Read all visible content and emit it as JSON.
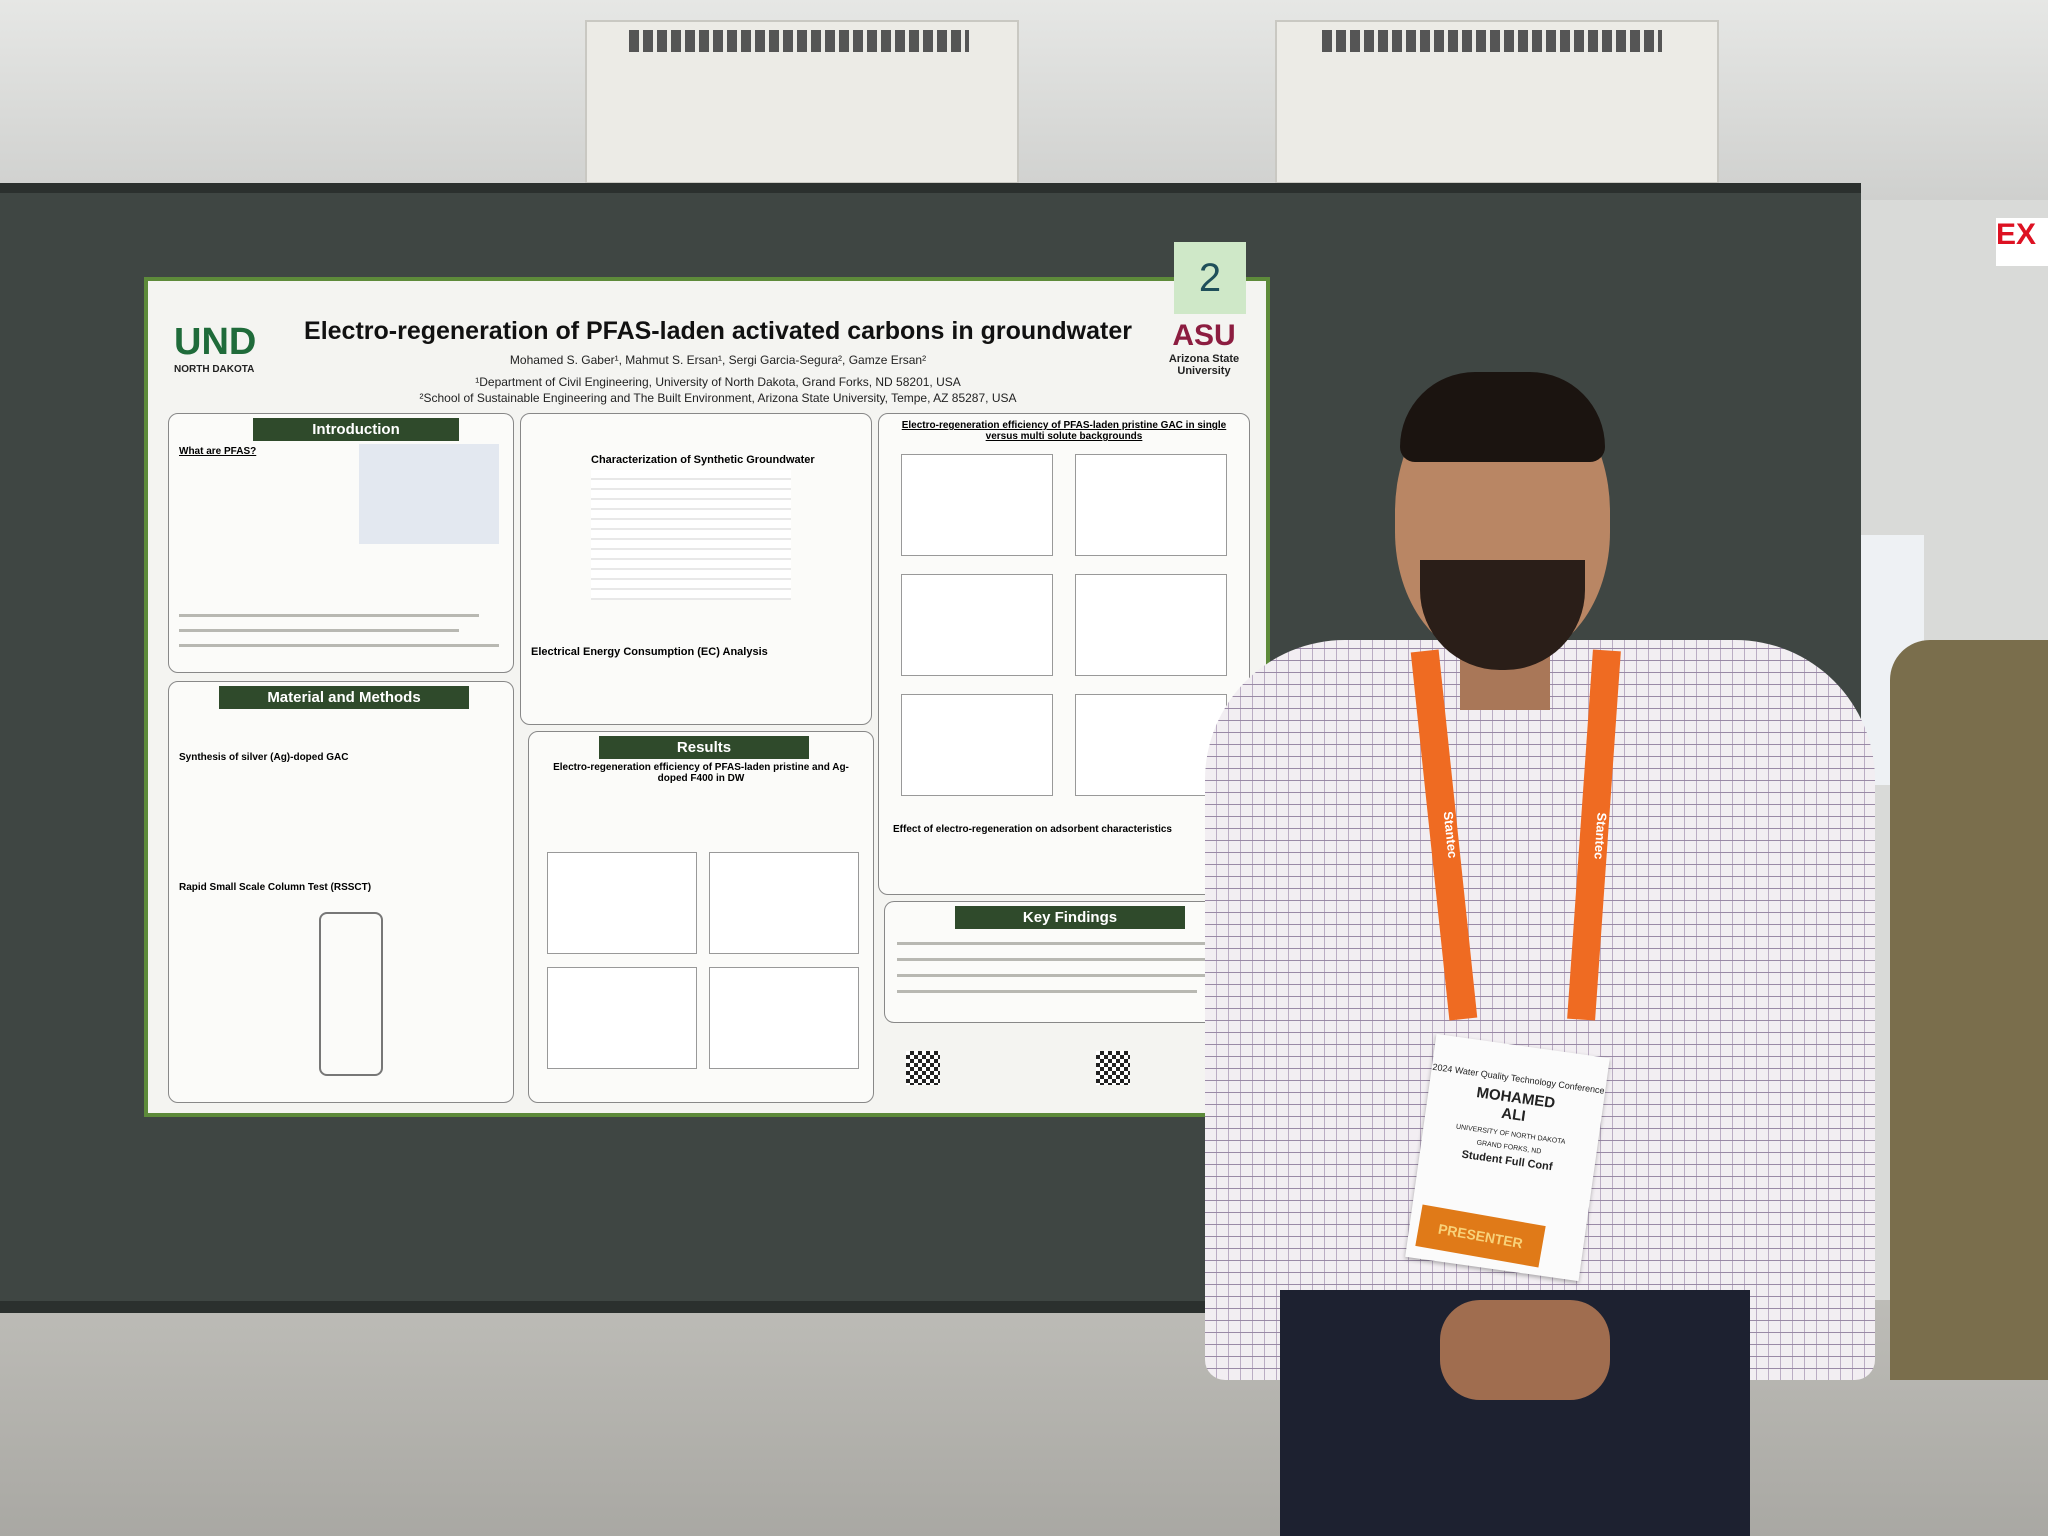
{
  "poster": {
    "title": "Electro-regeneration of PFAS-laden activated carbons in groundwater",
    "authors": "Mohamed S. Gaber¹, Mahmut S. Ersan¹, Sergi Garcia-Segura², Gamze Ersan²",
    "affiliation_1": "¹Department of Civil Engineering, University of North Dakota, Grand Forks, ND 58201, USA",
    "affiliation_2": "²School of Sustainable Engineering and The Built Environment, Arizona State University, Tempe, AZ 85287, USA",
    "logo_left": "UND",
    "logo_left_sub": "NORTH DAKOTA",
    "logo_right": "ASU",
    "logo_right_sub": "Arizona State University",
    "sections": {
      "introduction": "Introduction",
      "methods": "Material and Methods",
      "results": "Results",
      "key_findings": "Key Findings",
      "table_title": "Characterization of Synthetic Groundwater",
      "ec_title": "Electrical Energy Consumption (EC) Analysis",
      "results_sub": "Electro-regeneration efficiency of PFAS-laden pristine and Ag-doped F400 in DW",
      "right_sub": "Electro-regeneration efficiency of PFAS-laden pristine GAC in single versus multi solute backgrounds",
      "effect_title": "Effect of electro-regeneration on adsorbent characteristics",
      "what_pfas": "What are PFAS?",
      "rssct": "Rapid Small Scale Column Test (RSSCT)",
      "synthesis": "Synthesis of silver (Ag)-doped GAC"
    }
  },
  "sticker": "2",
  "badge": {
    "conference": "2024 Water Quality Technology Conference",
    "first_name": "MOHAMED",
    "last_name": "ALI",
    "org": "UNIVERSITY OF NORTH DAKOTA",
    "city": "GRAND FORKS, ND",
    "type": "Student Full Conf",
    "ribbon": "PRESENTER"
  },
  "lanyard_text": "Stantec",
  "exit_sign": "EX",
  "colors": {
    "poster_header": "#2f4a2b",
    "lanyard": "#ef6b22",
    "board": "#3f4643"
  }
}
